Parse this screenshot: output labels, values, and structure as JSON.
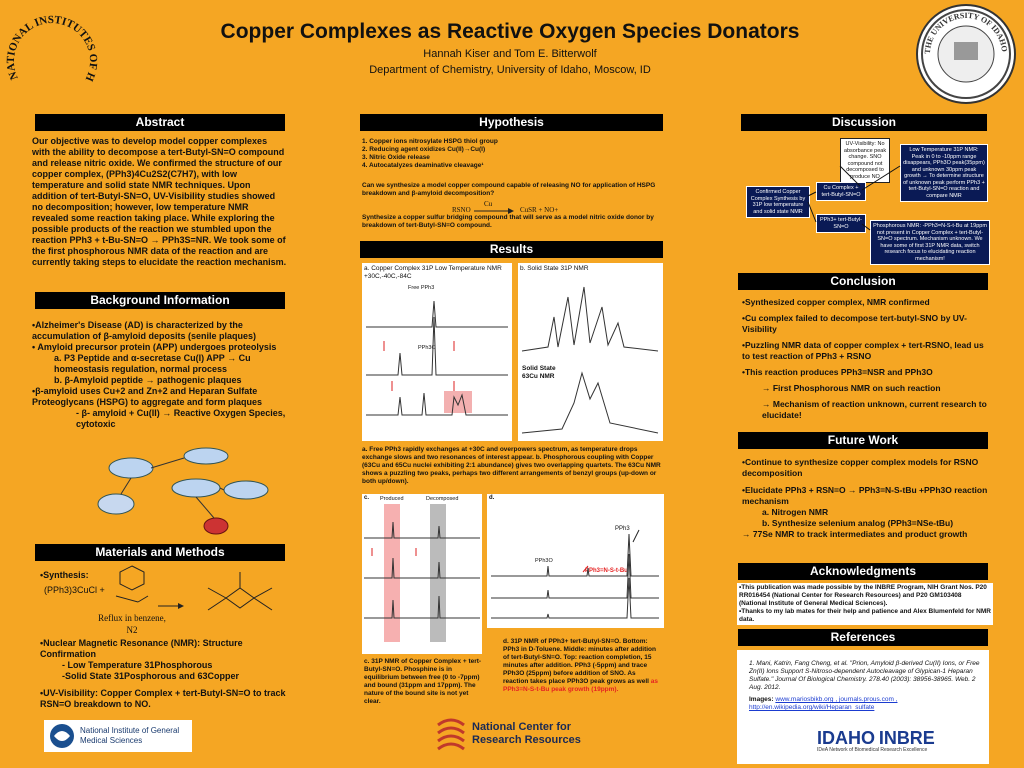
{
  "poster": {
    "title": "Copper Complexes as Reactive Oxygen Species Donators",
    "authors": "Hannah Kiser and Tom E. Bitterwolf",
    "affiliation": "Department of Chemistry, University of Idaho, Moscow, ID",
    "nih_logo_text": "NATIONAL INSTITUTES OF HEALTH",
    "ui_seal_text": "THE UNIVERSITY OF IDAHO 1889"
  },
  "abstract": {
    "header": "Abstract",
    "body": "Our objective was to develop model copper complexes with the ability to decompose a tert-Butyl-SN=O compound and release nitric oxide. We confirmed the structure of our copper complex, (PPh3)4Cu2S2(C7H7), with low temperature and solid state NMR techniques. Upon addition of tert-Butyl-SN=O, UV-Visibility studies showed no decomposition; however, low temperature NMR revealed some reaction taking place. While exploring the possible products of the reaction we stumbled upon the reaction PPh3 + t-Bu-SN=O → PPh3S=NR. We took some of the first phosphorous NMR data of the reaction and are currently taking steps to elucidate the reaction mechanism."
  },
  "background": {
    "header": "Background Information",
    "lines": [
      "•Alzheimer's Disease (AD) is characterized by the accumulation of β-amyloid deposits (senile plaques)",
      "• Amyloid precursor protein (APP) undergoes proteolysis",
      "a.  P3 Peptide and α-secretase Cu(I) APP → Cu homeostasis regulation, normal process",
      "b.  β-Amyloid peptide → pathogenic plaques",
      "•β-amyloid uses Cu+2 and Zn+2 and Heparan Sulfate Proteoglycans (HSPG) to aggregate and form plaques",
      "- β- amyloid + Cu(II) → Reactive Oxygen Species, cytotoxic"
    ]
  },
  "materials": {
    "header": "Materials and Methods",
    "synthesis_label": "•Synthesis:",
    "reagent": "(PPh3)3CuCl  +",
    "conditions": "Reflux in benzene, N2",
    "nmr_lines": [
      "•Nuclear Magnetic Resonance (NMR): Structure Confirmation",
      "- Low Temperature 31Phosphorous",
      "-Solid State 31Posphorous and 63Copper"
    ],
    "uv_line": "•UV-Visibility: Copper Complex + tert-Butyl-SN=O to track RSN=O breakdown to NO."
  },
  "hypothesis": {
    "header": "Hypothesis",
    "items": [
      "1.  Copper ions nitrosylate HSPG thiol group",
      "2.  Reducing agent oxidizes Cu(II)→Cu(I)",
      "3.  Nitric Oxide release",
      "4.  Autocatalyzes deaminative cleavage¹"
    ],
    "question": "Can we synthesize a model copper compound capable of releasing NO for application of HSPG breakdown and β-amyloid decomposition?",
    "reaction_left": "RSNO",
    "reaction_cat": "Cu",
    "reaction_right": "CuSR + NO+",
    "goal": "Synthesize a copper sulfur bridging compound that will serve as a model nitric oxide donor by breakdown of tert-Butyl-SN=O compound."
  },
  "results": {
    "header": "Results",
    "panel_a_title": "a. Copper Complex 31P Low Temperature NMR  +30C,-40C,-84C",
    "free_pph3": "Free PPh3",
    "pph3o": "PPh3O",
    "panel_b_title": "b. Solid State 31P NMR",
    "solid_cu": "Solid State 63Cu NMR",
    "caption_ab": "a. Free PPh3 rapidly exchanges at +30C and overpowers spectrum, as temperature drops exchange slows and two resonances of interest appear. b. Phosphorous coupling with Copper (63Cu and 65Cu nuclei exhibiting 2:1 abundance) gives two overlapping quartets. The 63Cu NMR shows a puzzling two peaks, perhaps two different arrangements of benzyl groups (up-down or both up/down).",
    "panel_c_label": "c.",
    "produced": "Produced",
    "decomposed": "Decomposed",
    "panel_d_label": "d.",
    "pph3": "PPh3",
    "pph3o_d": "PPh3O",
    "pph3_nsbu": "PPh3=N-S-t-Bu",
    "caption_c": "c. 31P NMR of Copper Complex + tert-Butyl-SN=O. Phosphine is in equilibrium between free (0 to -7ppm) and bound (31ppm and 17ppm). The nature of the bound site is not yet clear.",
    "caption_d": "d. 31P NMR of PPh3+ tert-Butyl-SN=O. Bottom: PPh3 in D-Toluene. Middle: minutes after addition of tert-Butyl-SN=O. Top: reaction completion, 15 minutes after addition. PPh3 (-5ppm) and trace PPh3O (25ppm) before addition of SNO. As reaction takes place PPh3O peak grows as well",
    "caption_d_red": "as PPh3=N-S-t-Bu peak growth (19ppm)."
  },
  "discussion": {
    "header": "Discussion",
    "box_uv": "UV-Visibility: No absorbance peak change. SNO compound not decomposed to produce NO",
    "box_lowtemp": "Low Temperature 31P NMR: Peak in 0 to -10ppm range disappears, PPh3O peak(35ppm) and unknown 30ppm peak growth → To determine structure of unknown peak perform PPh3 + tert-Butyl-SN=O reaction and compare NMR",
    "box_confirmed": "Confirmed Copper Complex Synthesis by 31P low temperature and solid state NMR",
    "box_cu": "Cu Complex + tert-Butyl-SN=O",
    "box_pph3": "PPh3+ tert-Butyl-SN=O",
    "box_phos": "Phosphorous NMR: -PPh3=N-S-t-Bu at 19ppm not present in Copper Complex + tert-Butyl-SN=O spectrum. Mechanism unknown. We have some of first 31P NMR data, switch research focus to elucidating reaction mechanism!"
  },
  "conclusion": {
    "header": "Conclusion",
    "lines": [
      "•Synthesized copper complex, NMR confirmed",
      "•Cu complex failed to decompose tert-butyl-SNO by UV- Visibility",
      "•Puzzling NMR data of copper complex + tert-RSNO, lead us to test reaction of PPh3 + RSNO",
      "•This reaction produces PPh3=NSR and PPh3O",
      "→ First Phosphorous NMR on such reaction",
      "→ Mechanism of reaction unknown, current research to elucidate!"
    ]
  },
  "future": {
    "header": "Future Work",
    "lines": [
      "•Continue to synthesize copper complex models for RSNO decomposition",
      "•Elucidate PPh3 + RSN=O → PPh3=N-S-tBu +PPh3O reaction mechanism",
      "a. Nitrogen NMR",
      "b. Synthesize selenium analog (PPh3=NSe-tBu)",
      "→ 77Se NMR to track intermediates and product                growth"
    ]
  },
  "ack": {
    "header": "Acknowledgments",
    "lines": [
      "•This publication was made possible by the INBRE Program, NIH Grant Nos. P20 RR016454 (National Center for Research Resources) and P20 GM103408 (National Institute of General Medical Sciences).",
      "•Thanks to my lab mates for their help and patience and Alex Blumenfeld for NMR data."
    ]
  },
  "references": {
    "header": "References",
    "ref1": "1.  Mani, Katrin, Fang Cheng, et al. \"Prion, Amyloid β-derived Cu(II) Ions, or Free Zn(II) Ions Support S-Nitroso-dependent Autocleavage of Glypican-1 Heparan Sulfate.\" Journal Of Biological Chemistry. 278.40 (2003): 38956-38965. Web. 2 Aug. 2012.",
    "images_label": "Images:",
    "images_links": "www.mariosbikb.org , journals.prous.com , http://en.wikipedia.org/wiki/Heparan_sulfate"
  },
  "logos": {
    "nigms": "National Institute of General Medical Sciences",
    "ncrr": "National Center for Research Resources",
    "idaho": "IDAHO",
    "inbre": "INBRE",
    "inbre_sub": "IDeA Network of Biomedical Research Excellence"
  },
  "colors": {
    "background": "#f5a623",
    "header": "#000000",
    "highlight_red": "#e52222"
  }
}
